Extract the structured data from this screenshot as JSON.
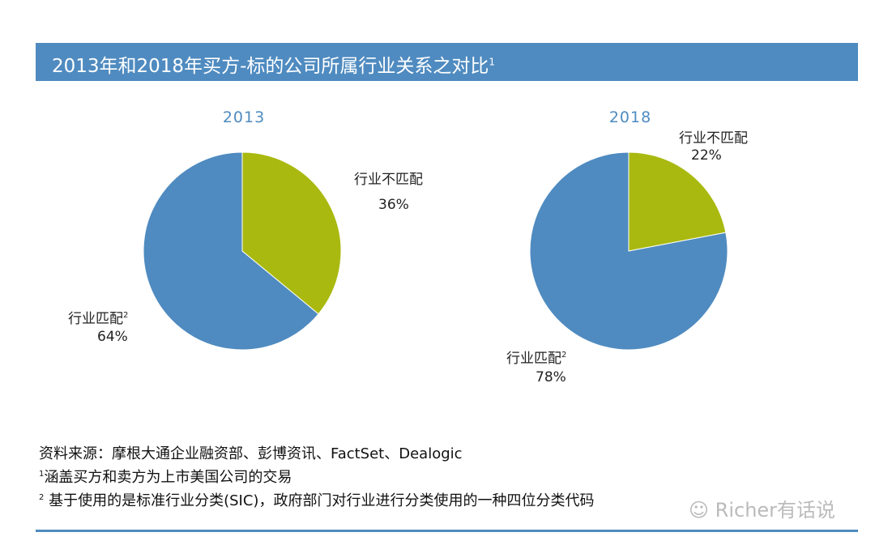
{
  "title": "2013年和2018年买方-标的公司所属行业关系之对比",
  "title_sup": "1",
  "colors": {
    "match": "#4f8bc0",
    "mismatch": "#a9b90f",
    "title_bar": "#4f8bc0"
  },
  "chart_data": [
    {
      "type": "pie",
      "title": "2013",
      "slices": [
        {
          "label": "行业不匹配",
          "value": 36,
          "display": "36%",
          "color": "#a9b90f"
        },
        {
          "label": "行业匹配",
          "sup": "2",
          "value": 64,
          "display": "64%",
          "color": "#4f8bc0"
        }
      ]
    },
    {
      "type": "pie",
      "title": "2018",
      "slices": [
        {
          "label": "行业不匹配",
          "value": 22,
          "display": "22%",
          "color": "#a9b90f"
        },
        {
          "label": "行业匹配",
          "sup": "2",
          "value": 78,
          "display": "78%",
          "color": "#4f8bc0"
        }
      ]
    }
  ],
  "notes": {
    "source": "资料来源：摩根大通企业融资部、彭博资讯、FactSet、Dealogic",
    "note1_mark": "1",
    "note1": "涵盖买方和卖方为上市美国公司的交易",
    "note2_mark": "2",
    "note2": "基于使用的是标准行业分类(SIC)，政府部门对行业进行分类使用的一种四位分类代码"
  },
  "watermark": "Richer有话说"
}
